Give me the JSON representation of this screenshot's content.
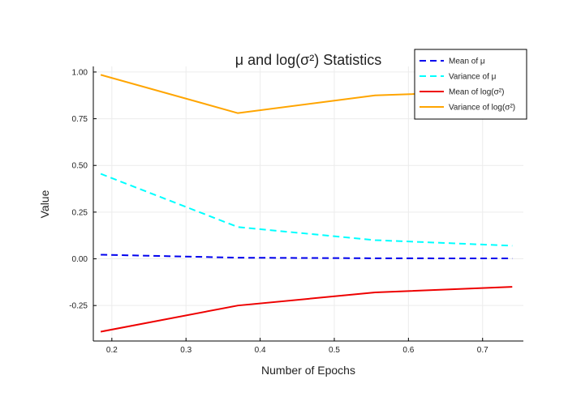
{
  "chart_data": {
    "type": "line",
    "title": "μ and log(σ²) Statistics",
    "xlabel": "Number of Epochs",
    "ylabel": "Value",
    "xlim": [
      0.175,
      0.755
    ],
    "ylim": [
      -0.44,
      1.03
    ],
    "xticks": [
      0.2,
      0.3,
      0.4,
      0.5,
      0.6,
      0.7
    ],
    "xtick_labels": [
      "0.2",
      "0.3",
      "0.4",
      "0.5",
      "0.6",
      "0.7"
    ],
    "yticks": [
      -0.25,
      0.0,
      0.25,
      0.5,
      0.75,
      1.0
    ],
    "ytick_labels": [
      "-0.25",
      "0.00",
      "0.25",
      "0.50",
      "0.75",
      "1.00"
    ],
    "grid": true,
    "legend_position": "top-right",
    "x": [
      0.185,
      0.37,
      0.555,
      0.74
    ],
    "series": [
      {
        "name": "Mean of μ",
        "values": [
          0.022,
          0.006,
          0.003,
          0.002
        ],
        "color": "#0000ee",
        "dash": "dashed"
      },
      {
        "name": "Variance of μ",
        "values": [
          0.455,
          0.17,
          0.1,
          0.07
        ],
        "color": "#00ffff",
        "dash": "dashed"
      },
      {
        "name": "Mean of log(σ²)",
        "values": [
          -0.39,
          -0.25,
          -0.18,
          -0.15
        ],
        "color": "#ee0000",
        "dash": "solid"
      },
      {
        "name": "Variance of log(σ²)",
        "values": [
          0.985,
          0.78,
          0.875,
          0.9
        ],
        "color": "#ffa500",
        "dash": "solid"
      }
    ]
  }
}
